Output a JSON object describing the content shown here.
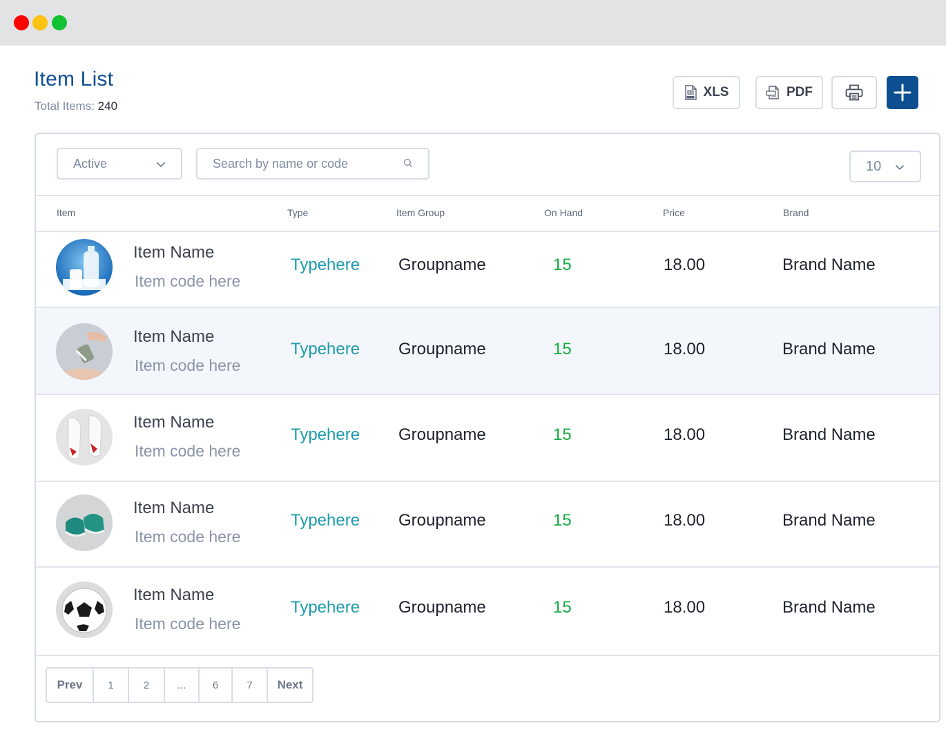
{
  "window": {
    "controls": [
      "close",
      "minimize",
      "maximize"
    ]
  },
  "header": {
    "title": "Item List",
    "total_label": "Total Items:",
    "total_count": "240"
  },
  "actions": {
    "xls_label": "XLS",
    "pdf_label": "PDF",
    "print_icon": "printer-icon",
    "add_icon": "plus-icon"
  },
  "filters": {
    "status_value": "Active",
    "search_placeholder": "Search by name or code",
    "page_size_value": "10"
  },
  "table": {
    "columns": [
      "Item",
      "Type",
      "Item Group",
      "On Hand",
      "Price",
      "Brand"
    ],
    "rows": [
      {
        "image": "milk-bottle-and-glass",
        "name": "Item Name",
        "code": "Item code here",
        "type": "Typehere",
        "group": "Groupname",
        "on_hand": "15",
        "price": "18.00",
        "brand": "Brand Name"
      },
      {
        "image": "hand-sanitizer-spray",
        "name": "Item Name",
        "code": "Item code here",
        "type": "Typehere",
        "group": "Groupname",
        "on_hand": "15",
        "price": "18.00",
        "brand": "Brand Name"
      },
      {
        "image": "white-red-sneakers",
        "name": "Item Name",
        "code": "Item code here",
        "type": "Typehere",
        "group": "Groupname",
        "on_hand": "15",
        "price": "18.00",
        "brand": "Brand Name"
      },
      {
        "image": "teal-sneakers",
        "name": "Item Name",
        "code": "Item code here",
        "type": "Typehere",
        "group": "Groupname",
        "on_hand": "15",
        "price": "18.00",
        "brand": "Brand Name"
      },
      {
        "image": "soccer-ball",
        "name": "Item Name",
        "code": "Item code here",
        "type": "Typehere",
        "group": "Groupname",
        "on_hand": "15",
        "price": "18.00",
        "brand": "Brand Name"
      }
    ]
  },
  "pagination": {
    "prev": "Prev",
    "pages": [
      "1",
      "2",
      "...",
      "6",
      "7"
    ],
    "next": "Next"
  },
  "colors": {
    "title": "#0f4f93",
    "type": "#1f9cad",
    "on_hand": "#14ad3f",
    "add_button": "#0e4f92"
  }
}
